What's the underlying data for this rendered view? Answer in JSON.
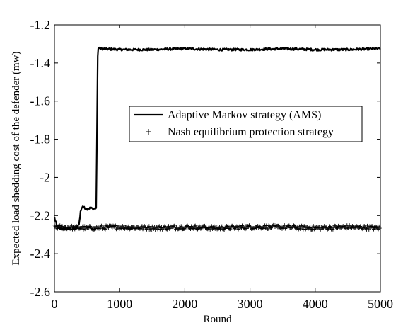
{
  "chart_data": {
    "type": "line",
    "title": "",
    "xlabel": "Round",
    "ylabel": "Expected  load shedding cost of the defender (mw)",
    "xlim": [
      0,
      5000
    ],
    "ylim": [
      -2.6,
      -1.2
    ],
    "xticks": [
      0,
      1000,
      2000,
      3000,
      4000,
      5000
    ],
    "yticks": [
      -2.6,
      -2.4,
      -2.2,
      -2.0,
      -1.8,
      -1.6,
      -1.4,
      -1.2
    ],
    "xtick_labels": [
      "0",
      "1000",
      "2000",
      "3000",
      "4000",
      "5000"
    ],
    "ytick_labels": [
      "-2.6",
      "-2.4",
      "-2.2",
      "-2",
      "-1.8",
      "-1.6",
      "-1.4",
      "-1.2"
    ],
    "grid": false,
    "legend_position": "center-right",
    "series": [
      {
        "name": "Adaptive Markov strategy (AMS)",
        "style": "solid-line",
        "color": "#000000",
        "x": [
          0,
          25,
          50,
          100,
          200,
          300,
          350,
          380,
          400,
          430,
          460,
          500,
          550,
          600,
          640,
          650,
          665,
          680,
          700,
          1000,
          1500,
          2000,
          2500,
          3000,
          3500,
          4000,
          4500,
          5000
        ],
        "y": [
          -2.21,
          -2.24,
          -2.265,
          -2.27,
          -2.27,
          -2.27,
          -2.265,
          -2.24,
          -2.18,
          -2.15,
          -2.16,
          -2.165,
          -2.16,
          -2.165,
          -2.16,
          -1.85,
          -1.33,
          -1.32,
          -1.325,
          -1.33,
          -1.33,
          -1.325,
          -1.33,
          -1.33,
          -1.325,
          -1.33,
          -1.33,
          -1.325
        ]
      },
      {
        "name": "Nash equilibrium protection strategy",
        "style": "plus-markers",
        "color": "#000000",
        "x": [
          0,
          500,
          1000,
          1500,
          2000,
          2500,
          3000,
          3500,
          4000,
          4500,
          5000
        ],
        "y": [
          -2.26,
          -2.265,
          -2.26,
          -2.265,
          -2.26,
          -2.265,
          -2.26,
          -2.26,
          -2.265,
          -2.26,
          -2.265
        ]
      }
    ]
  }
}
